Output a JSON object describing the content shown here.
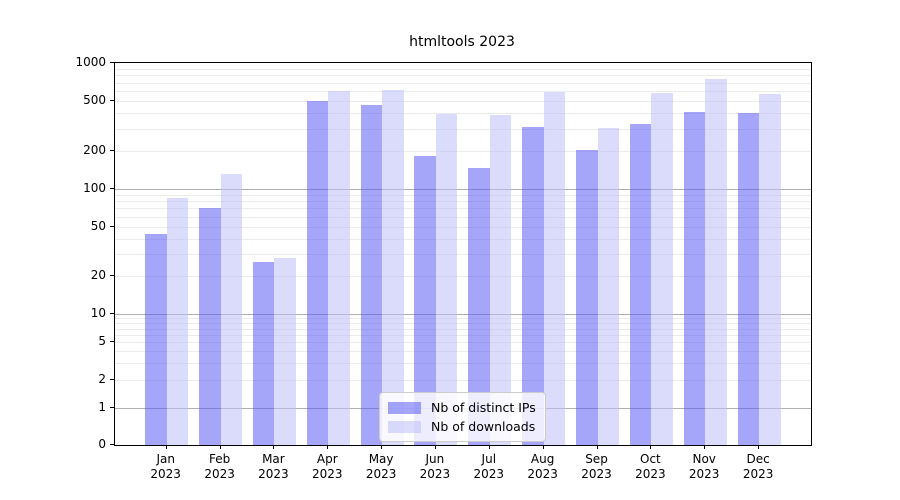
{
  "chart_data": {
    "type": "bar",
    "title": "htmltools 2023",
    "months": [
      "Jan",
      "Feb",
      "Mar",
      "Apr",
      "May",
      "Jun",
      "Jul",
      "Aug",
      "Sep",
      "Oct",
      "Nov",
      "Dec"
    ],
    "year": "2023",
    "categories": [
      "Jan 2023",
      "Feb 2023",
      "Mar 2023",
      "Apr 2023",
      "May 2023",
      "Jun 2023",
      "Jul 2023",
      "Aug 2023",
      "Sep 2023",
      "Oct 2023",
      "Nov 2023",
      "Dec 2023"
    ],
    "series": [
      {
        "name": "Nb of distinct IPs",
        "color": "rgba(82, 82, 245, 0.52)",
        "values": [
          44,
          70,
          26,
          500,
          465,
          183,
          148,
          310,
          205,
          330,
          410,
          400
        ]
      },
      {
        "name": "Nb of downloads",
        "color": "rgba(190, 190, 247, 0.55)",
        "values": [
          85,
          131,
          28,
          600,
          612,
          394,
          385,
          590,
          306,
          576,
          745,
          572
        ]
      }
    ],
    "y_ticks": [
      0,
      1,
      2,
      5,
      10,
      20,
      50,
      100,
      200,
      500,
      1000
    ],
    "y_scale": "symlog",
    "ylim": [
      0,
      1000
    ],
    "xlabel": "",
    "ylabel": "",
    "grid": true,
    "legend_position": "lower center",
    "colors": {
      "major_gridline": "#b0b0b0",
      "minor_gridline": "#ebebeb",
      "axis": "#000000",
      "legend_border": "#cccccc",
      "legend_background": "rgba(255,255,255,0.8)"
    }
  }
}
